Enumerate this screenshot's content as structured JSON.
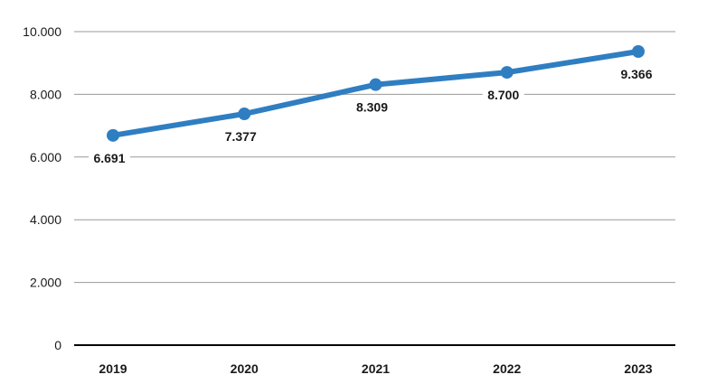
{
  "chart_data": {
    "type": "line",
    "title": "",
    "xlabel": "",
    "ylabel": "",
    "categories": [
      "2019",
      "2020",
      "2021",
      "2022",
      "2023"
    ],
    "series": [
      {
        "values": [
          6691,
          7377,
          8309,
          8700,
          9366
        ],
        "labels": [
          "6.691",
          "7.377",
          "8.309",
          "8.700",
          "9.366"
        ],
        "color": "#2f7ec2"
      }
    ],
    "ylim": [
      0,
      10000
    ],
    "yticks": [
      0,
      2000,
      4000,
      6000,
      8000,
      10000
    ],
    "ytick_labels": [
      "0",
      "2.000",
      "4.000",
      "6.000",
      "8.000",
      "10.000"
    ],
    "grid": true,
    "legend": "none",
    "colors": {
      "line": "#2f7ec2",
      "grid": "#9a9a9a",
      "axis": "#000000",
      "text": "#1a1a1a"
    }
  }
}
